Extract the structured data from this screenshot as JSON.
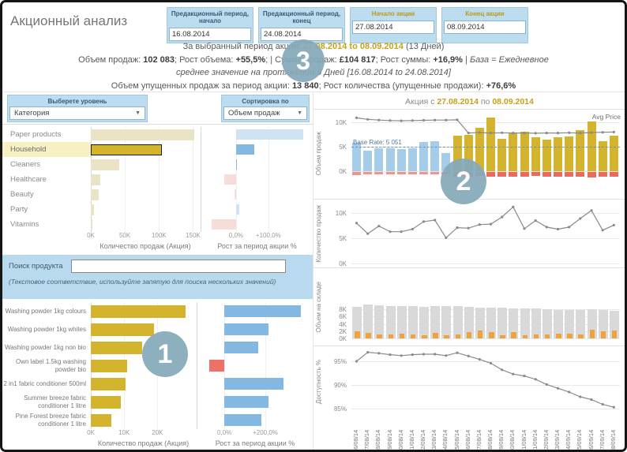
{
  "app": {
    "title": "Акционный анализ"
  },
  "colors": {
    "gold": "#d4b42d",
    "beige": "#eae3c5",
    "blue": "#82b8e2",
    "light_blue": "#cfe3f2",
    "salmon": "#ed7164",
    "pink": "#f6ddd9",
    "pre_bar": "#a5cce8",
    "pre_lost": "#f0948c",
    "promo_lost": "#e96a5e",
    "orange": "#f0a23c",
    "stock_gray": "#d9d9d9",
    "line_gray": "#8a8a8a",
    "badge": "#86a9ba",
    "accent_gold_text": "#c7a118"
  },
  "date_filters": [
    {
      "label": "Предакционный период, начало",
      "value": "16.08.2014"
    },
    {
      "label": "Предакционный период, конец",
      "value": "24.08.2014"
    },
    {
      "label": "Начало акции",
      "value": "27.08.2014"
    },
    {
      "label": "Конец акции",
      "value": "08.09.2014"
    }
  ],
  "summary": {
    "l1a": "За выбранный период акции: ",
    "l1b": "27.08.2014 to 08.09.2014",
    "l1c": " (13 Дней)",
    "l2a": "Объем продаж: ",
    "l2b": "102 083",
    "l2c": "; Рост объема: ",
    "l2d": "+55,5%",
    "l2e": ";  |  Сумма продаж: ",
    "l2f": "£104 817",
    "l2g": "; Рост суммы: ",
    "l2h": "+16,9%",
    "l2i": " | ",
    "l2j": "База = Ежедневное",
    "l3": "среднее значение на протяжении 9 Дней [16.08.2014 to 24.08.2014]",
    "l4a": "Объем упущенных продаж за период акции: ",
    "l4b": "13 840",
    "l4c": "; Рост количества (упущенные продажи): ",
    "l4d": "+76,6%"
  },
  "left": {
    "level_filter": {
      "label": "Выберете уровень",
      "value": "Категория"
    },
    "sort_filter": {
      "label": "Сортировка по",
      "value": "Объем продаж"
    },
    "search": {
      "label": "Поиск продукта",
      "value": "",
      "note": "(Текстовое соответствие, используйте запятую для поиска нескольких значений)"
    }
  },
  "right": {
    "title_prefix": "Акция с ",
    "start_date": "27.08.2014",
    "middle": " по ",
    "end_date": "08.09.2014"
  },
  "badges": [
    "1",
    "2",
    "3"
  ],
  "chart_data": [
    {
      "id": "category_sales",
      "type": "bar",
      "orientation": "horizontal",
      "categories": [
        "Paper products",
        "Household",
        "Cleaners",
        "Healthcare",
        "Beauty",
        "Party",
        "Vitamins"
      ],
      "values": [
        152000,
        104000,
        42000,
        14000,
        12000,
        4000,
        1500
      ],
      "selected": "Household",
      "xlabel": "Количество продаж (Акция)",
      "xticks": [
        "0K",
        "50K",
        "100K",
        "150K"
      ],
      "xtick_values": [
        0,
        50000,
        100000,
        150000
      ],
      "xlim": [
        0,
        160000
      ]
    },
    {
      "id": "category_growth",
      "type": "bar",
      "orientation": "horizontal",
      "categories": [
        "Paper products",
        "Household",
        "Cleaners",
        "Healthcare",
        "Beauty",
        "Party",
        "Vitamins"
      ],
      "values": [
        207,
        57,
        4,
        -37,
        -6,
        11,
        -76
      ],
      "muted": [
        true,
        false,
        false,
        true,
        true,
        true,
        true
      ],
      "xlabel": "Рост за период акции %",
      "xticks": [
        "0,0%",
        "+100,0%"
      ],
      "xtick_values": [
        0,
        100
      ],
      "xlim": [
        -100,
        230
      ]
    },
    {
      "id": "product_sales",
      "type": "bar",
      "orientation": "horizontal",
      "categories": [
        "Washing powder 1kg colours",
        "Washing powder 1kg whites",
        "Washing powder 1kg non bio",
        "Own label 1.5kg washing powder bio",
        "2 in1 fabric conditioner 500ml",
        "Summer breeze fabric conditioner 1 litre",
        "Pine Forest breeze fabric conditioner 1 litre"
      ],
      "values": [
        28500,
        19000,
        15500,
        10800,
        10400,
        8900,
        6100
      ],
      "xlabel": "Количество продаж (Акция)",
      "xticks": [
        "0K",
        "10K",
        "20K"
      ],
      "xtick_values": [
        0,
        10000,
        20000
      ],
      "xlim": [
        0,
        31500
      ]
    },
    {
      "id": "product_growth",
      "type": "bar",
      "orientation": "horizontal",
      "categories": [
        "Washing powder 1kg colours",
        "Washing powder 1kg whites",
        "Washing powder 1kg non bio",
        "Own label 1.5kg washing powder bio",
        "2 in1 fabric conditioner 500ml",
        "Summer breeze fabric conditioner 1 litre",
        "Pine Forest breeze fabric conditioner 1 litre"
      ],
      "values": [
        375,
        215,
        165,
        -75,
        290,
        215,
        180
      ],
      "muted": [
        false,
        false,
        false,
        false,
        false,
        false,
        false
      ],
      "xlabel": "Рост за период акции %",
      "xticks": [
        "0,0%",
        "+200,0%"
      ],
      "xtick_values": [
        0,
        200
      ],
      "xlim": [
        -120,
        420
      ]
    },
    {
      "id": "daily_sales",
      "type": "bar+line",
      "units": "K",
      "ylabel": "Объем продаж",
      "x": [
        "16/08/14",
        "17/08/14",
        "18/08/14",
        "19/08/14",
        "20/08/14",
        "21/08/14",
        "22/08/14",
        "23/08/14",
        "24/08/14",
        "25/08/14",
        "26/08/14",
        "27/08/14",
        "28/08/14",
        "29/08/14",
        "30/08/14",
        "31/08/14",
        "01/09/14",
        "02/09/14",
        "03/09/14",
        "04/09/14",
        "05/09/14",
        "06/09/14",
        "07/09/14",
        "08/09/14"
      ],
      "bars": [
        5.8,
        4.2,
        4.7,
        4.7,
        4.6,
        4.7,
        5.9,
        6.2,
        3.7,
        7.3,
        7.5,
        8.9,
        10.9,
        6.6,
        7.9,
        8.1,
        6.9,
        6.4,
        7.0,
        7.1,
        8.4,
        10.1,
        6.1,
        7.2
      ],
      "bar_phase": [
        "pre",
        "pre",
        "pre",
        "pre",
        "pre",
        "pre",
        "pre",
        "pre",
        "pre",
        "promo",
        "promo",
        "promo",
        "promo",
        "promo",
        "promo",
        "promo",
        "promo",
        "promo",
        "promo",
        "promo",
        "promo",
        "promo",
        "promo",
        "promo"
      ],
      "lost": [
        -0.6,
        -0.4,
        -0.45,
        -0.45,
        -0.4,
        -0.45,
        -0.5,
        -0.5,
        -0.5,
        -0.9,
        -0.95,
        -0.85,
        -1.0,
        -0.9,
        -1.0,
        -0.9,
        -0.85,
        -0.9,
        -1.0,
        -0.9,
        -1.0,
        -1.1,
        -0.95,
        -1.0
      ],
      "line": {
        "name": "Avg Price",
        "values": [
          10.9,
          10.6,
          10.45,
          10.35,
          10.3,
          10.35,
          10.4,
          10.45,
          10.45,
          10.5,
          7.8,
          7.9,
          7.8,
          7.85,
          7.8,
          7.8,
          7.75,
          7.8,
          7.8,
          7.85,
          7.8,
          7.9,
          7.95,
          8.0
        ]
      },
      "baseline": {
        "label": "Base Rate: 5 051",
        "value": 5.051
      },
      "yticks": [
        "0K",
        "5K",
        "10K"
      ],
      "ytick_values": [
        0,
        5,
        10
      ],
      "ylim": [
        -1.5,
        11.5
      ]
    },
    {
      "id": "daily_qty",
      "type": "line",
      "units": "K",
      "ylabel": "Количество продаж",
      "values": [
        8.0,
        5.9,
        7.4,
        6.3,
        6.3,
        6.8,
        8.3,
        8.6,
        5.1,
        7.1,
        7.0,
        7.7,
        7.8,
        9.2,
        11.2,
        6.9,
        8.5,
        7.2,
        6.8,
        7.2,
        8.9,
        10.5,
        6.6,
        7.6
      ],
      "yticks": [
        "0K",
        "5K",
        "10K"
      ],
      "ytick_values": [
        0,
        5,
        10
      ],
      "ylim": [
        0,
        11.5
      ]
    },
    {
      "id": "daily_stock",
      "type": "bar",
      "units": "K",
      "ylabel": "Объем на складе",
      "values_total": [
        8.7,
        9.3,
        9.1,
        9.0,
        8.9,
        9.0,
        8.8,
        8.9,
        8.9,
        9.0,
        8.8,
        8.5,
        8.5,
        8.4,
        8.3,
        8.3,
        8.2,
        8.1,
        7.8,
        7.8,
        7.9,
        8.0,
        7.8,
        7.6
      ],
      "values_highlight": [
        2.0,
        1.5,
        1.0,
        1.1,
        1.3,
        1.2,
        0.8,
        1.6,
        0.9,
        1.1,
        1.8,
        2.2,
        1.8,
        0.8,
        1.8,
        0.9,
        1.0,
        1.1,
        1.3,
        1.4,
        1.2,
        2.4,
        2.0,
        2.2
      ],
      "yticks": [
        "0K",
        "2K",
        "4K",
        "6K",
        "8K"
      ],
      "ytick_values": [
        0,
        2,
        4,
        6,
        8
      ],
      "ylim": [
        0,
        9.5
      ]
    },
    {
      "id": "daily_availability",
      "type": "line",
      "units": "%",
      "ylabel": "Доступность %",
      "values": [
        95.0,
        96.9,
        96.7,
        96.4,
        96.2,
        96.4,
        96.5,
        96.5,
        96.2,
        96.8,
        96.1,
        95.4,
        94.6,
        93.2,
        92.3,
        91.9,
        91.2,
        90.1,
        89.3,
        88.5,
        87.5,
        86.9,
        85.9,
        85.3
      ],
      "yticks": [
        "85%",
        "90%",
        "95%"
      ],
      "ytick_values": [
        85,
        90,
        95
      ],
      "ylim": [
        84,
        98
      ]
    }
  ]
}
